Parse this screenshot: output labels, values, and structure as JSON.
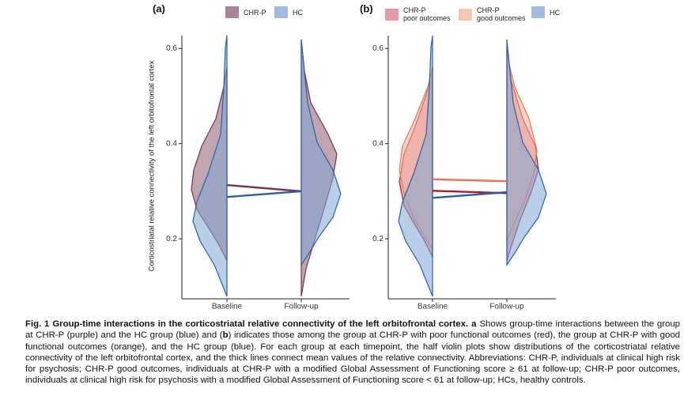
{
  "chart_data": [
    {
      "type": "violin",
      "panel": "(a)",
      "y_label": "Corticostriatal relative connectivity of the left orbitofrontal cortex",
      "categories": [
        "Baseline",
        "Follow-up"
      ],
      "ylim": [
        0.074,
        0.627
      ],
      "yticks": [
        0.2,
        0.4,
        0.6
      ],
      "series": [
        {
          "name": "CHR-P",
          "color": "#7b2f4f",
          "values": [
            0.313,
            0.3
          ]
        },
        {
          "name": "HC",
          "color": "#2a5fa8",
          "values": [
            0.288,
            0.3
          ]
        }
      ]
    },
    {
      "type": "violin",
      "panel": "(b)",
      "categories": [
        "Baseline",
        "Follow-up"
      ],
      "ylim": [
        0.074,
        0.627
      ],
      "yticks": [
        0.2,
        0.4,
        0.6
      ],
      "series": [
        {
          "name": "CHR-P\npoor outcomes",
          "color": "#b2182b",
          "values": [
            0.301,
            0.296
          ]
        },
        {
          "name": "CHR-P\ngood outcomes",
          "color": "#e8744f",
          "values": [
            0.325,
            0.321
          ]
        },
        {
          "name": "HC",
          "color": "#2a5fa8",
          "values": [
            0.286,
            0.298
          ]
        }
      ]
    }
  ],
  "caption": {
    "segments": [
      {
        "text": "Fig. 1",
        "bold": true
      },
      {
        "text": "Group-time interactions in the corticostriatal relative connectivity of the left orbitofrontal cortex.",
        "bold": true
      },
      {
        "text": "a",
        "bold": true
      },
      {
        "text": "Shows group-time interactions between the group at CHR-P (purple) and the HC group (blue) and (",
        "bold": false
      },
      {
        "text": "b",
        "bold": true
      },
      {
        "text": ") indicates those among the group at CHR-P with poor functional outcomes (red), the group at CHR-P with good functional outcomes (orange), and the HC group (blue). For each group at each timepoint, the half violin plots show distributions of the corticostriatal relative connectivity of the left orbitofrontal cortex, and the thick lines connect mean values of the relative connectivity. Abbreviations: CHR-P, individuals at clinical high risk for psychosis; CHR-P good outcomes, individuals at CHR-P with a modified Global Assessment of Functioning score ≥ 61 at follow-up; CHR-P poor outcomes, individuals at clinical high risk for psychosis with a modified Global Assessment of Functioning score < 61 at follow-up; HCs, healthy controls.",
        "bold": false
      }
    ]
  }
}
